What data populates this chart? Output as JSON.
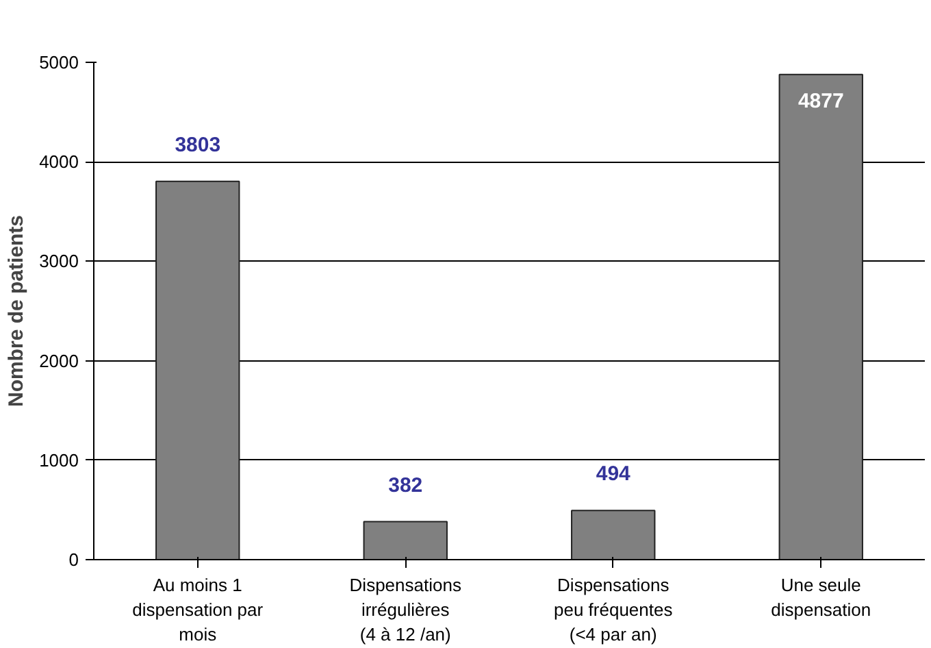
{
  "chart_data": {
    "type": "bar",
    "ylabel": "Nombre de patients",
    "categories": [
      "Au moins 1\ndispensation par\nmois",
      "Dispensations\nirrégulières\n(4 à 12 /an)",
      "Dispensations\npeu fréquentes\n(<4 par an)",
      "Une seule\ndispensation"
    ],
    "values": [
      3803,
      382,
      494,
      4877
    ],
    "color": "#808080",
    "ylim": [
      0,
      5000
    ],
    "yticks": [
      0,
      1000,
      2000,
      3000,
      4000,
      5000
    ],
    "grid": "y",
    "data_labels": true
  }
}
